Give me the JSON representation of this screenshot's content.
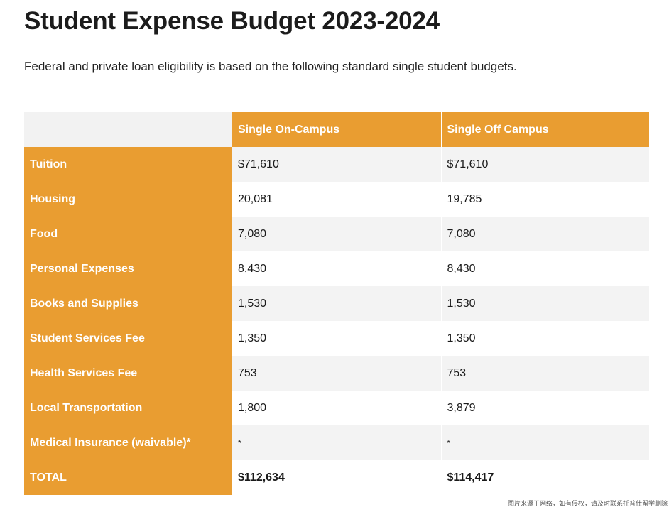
{
  "title": "Student Expense Budget 2023-2024",
  "intro": "Federal and private loan eligibility is based on the following standard single student budgets.",
  "table": {
    "corner": "",
    "columns": [
      "Single On-Campus",
      "Single Off Campus"
    ],
    "rows": [
      {
        "label": "Tuition",
        "on": "$71,610",
        "off": "$71,610"
      },
      {
        "label": "Housing",
        "on": "20,081",
        "off": "19,785"
      },
      {
        "label": "Food",
        "on": "7,080",
        "off": "7,080"
      },
      {
        "label": "Personal Expenses",
        "on": "8,430",
        "off": "8,430"
      },
      {
        "label": "Books and Supplies",
        "on": "1,530",
        "off": "1,530"
      },
      {
        "label": "Student Services Fee",
        "on": "1,350",
        "off": "1,350"
      },
      {
        "label": "Health Services Fee",
        "on": "753",
        "off": "753"
      },
      {
        "label": "Local Transportation",
        "on": "1,800",
        "off": "3,879"
      },
      {
        "label": "Medical Insurance (waivable)*",
        "on": "*",
        "off": "*"
      }
    ],
    "total": {
      "label": "TOTAL",
      "on": "$112,634",
      "off": "$114,417"
    }
  },
  "colors": {
    "accent": "#e99d31",
    "row_stripe": "#f3f3f3",
    "header_corner": "#f2f2f2"
  },
  "watermark": "图片来源于网络，如有侵权，请及时联系托普仕留学删除"
}
